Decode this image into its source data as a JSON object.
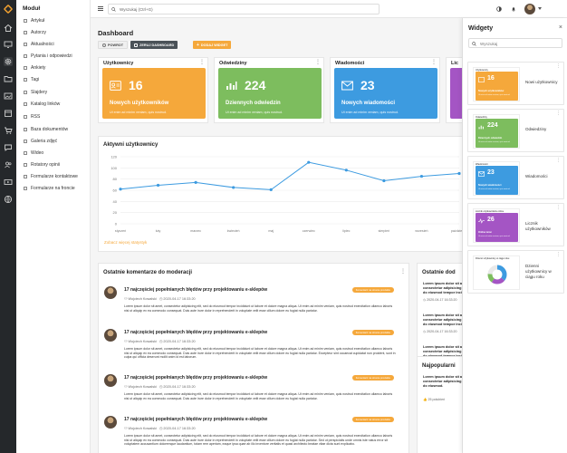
{
  "sidebar": {
    "title": "Moduł",
    "items": [
      {
        "label": "Artykuł"
      },
      {
        "label": "Autorzy"
      },
      {
        "label": "Aktualności"
      },
      {
        "label": "Pytania i odpowiedzi"
      },
      {
        "label": "Ankiety"
      },
      {
        "label": "Tagi"
      },
      {
        "label": "Slajdery"
      },
      {
        "label": "Katalog linków"
      },
      {
        "label": "RSS"
      },
      {
        "label": "Baza dokumentów"
      },
      {
        "label": "Galeria zdjęć"
      },
      {
        "label": "Wideo"
      },
      {
        "label": "Rotatory opinii"
      },
      {
        "label": "Formularze kontaktowe"
      },
      {
        "label": "Formularze na froncie"
      }
    ]
  },
  "topbar": {
    "search_placeholder": "Wyszukaj (Ctrl+G)"
  },
  "page": {
    "title": "Dashboard",
    "buttons": {
      "back": "POWROT",
      "reset": "ZERUJ DASHBOARD",
      "add_widget": "DODAJ WIDGET"
    }
  },
  "stats": [
    {
      "header": "Użytkownicy",
      "value": "16",
      "label": "Nowych użytkowników",
      "desc": "Ut enim ad minim veniam, quis nostrud.",
      "color": "#f5a83b"
    },
    {
      "header": "Odwiedziny",
      "value": "224",
      "label": "Dziennych odwiedzin",
      "desc": "Ut enim ad minim veniam, quis nostrud.",
      "color": "#7dbd5e"
    },
    {
      "header": "Wiadomości",
      "value": "23",
      "label": "Nowych wiadomości",
      "desc": "Ut enim ad minim veniam, quis nostrud.",
      "color": "#3d9be0"
    },
    {
      "header": "Lic",
      "color": "#a455c4"
    }
  ],
  "chart": {
    "title": "Aktywni użytkownicy",
    "more_link": "Zobacz więcej statystyk"
  },
  "chart_data": {
    "type": "line",
    "title": "Aktywni użytkownicy",
    "categories": [
      "styczeń",
      "luty",
      "marzec",
      "kwiecień",
      "maj",
      "czerwiec",
      "lipiec",
      "sierpień",
      "wrzesień",
      "październik"
    ],
    "series": [
      {
        "values": [
          62,
          69,
          74,
          65,
          61,
          110,
          96,
          77,
          85,
          90
        ]
      }
    ],
    "y_ticks": [
      "0",
      "20",
      "40",
      "60",
      "80",
      "100",
      "120"
    ],
    "ylim": [
      0,
      120
    ],
    "grid": true,
    "color": "#3d9be0"
  },
  "comments_card": {
    "title": "Ostatnie komentarze do moderacji",
    "items": [
      {
        "title": "17 najczęściej popełnianych błędów przy projektowaniu e-sklepów",
        "tag": "Komentarz na stronie produktu",
        "author": "Wojciech Kowalski",
        "date": "2020-04-17 16:33:20",
        "body": "Lorem ipsum dolor sit amet, consectetur adipisicing elit, sed do eiusmod tempor incididunt ut labore et dolore magna aliqua. Ut enim ad minim veniam, quis nostrud exercitation ullamco laboris nisi ut aliquip ex ea commodo consequat. Duis aute irure dolor in reprehenderit in voluptate velit esse cillum dolore eu fugiat nulla pariatur."
      },
      {
        "title": "17 najczęściej popełnianych błędów przy projektowaniu e-sklepów",
        "tag": "Komentarz na stronie produktu",
        "author": "Wojciech Kowalski",
        "date": "2020-04-17 16:33:20",
        "body": "Lorem ipsum dolor sit amet, consectetur adipisicing elit, sed do eiusmod tempor incididunt ut labore et dolore magna aliqua. Ut enim ad minim veniam, quis nostrud exercitation ullamco laboris nisi ut aliquip ex ea commodo consequat. Duis aute irure dolor in reprehenderit in voluptate velit esse cillum dolore eu fugiat nulla pariatur. Excepteur sint occaecat cupidatat non proident, sunt in culpa qui officia deserunt mollit anim id est laborum."
      },
      {
        "title": "17 najczęściej popełnianych błędów przy projektowaniu e-sklepów",
        "tag": "Komentarz na stronie produktu",
        "author": "Wojciech Kowalski",
        "date": "2020-04-17 16:33:20",
        "body": "Lorem ipsum dolor sit amet, consectetur adipisicing elit, sed do eiusmod tempor incididunt ut labore et dolore magna aliqua. Ut enim ad minim veniam, quis nostrud exercitation ullamco laboris nisi ut aliquip ex ea commodo consequat. Duis aute irure dolor in reprehenderit in voluptate velit esse cillum dolore eu fugiat nulla pariatur."
      },
      {
        "title": "17 najczęściej popełnianych błędów przy projektowaniu e-sklepów",
        "tag": "Komentarz na stronie produktu",
        "author": "Wojciech Kowalski",
        "date": "2020-04-17 16:33:20",
        "body": "Lorem ipsum dolor sit amet, consectetur adipisicing elit, sed do eiusmod tempor incididunt ut labore et dolore magna aliqua. Ut enim ad minim veniam, quis nostrud exercitation ullamco laboris nisi ut aliquip ex ea commodo consequat. Duis aute irure dolor in reprehenderit in voluptate velit esse cillum dolore eu fugiat nulla pariatur. Sed ut perspiciatis unde omnis iste natus error sit voluptatem accusantium doloremque laudantium, totam rem aperiam, eaque ipsa quae ab illo inventore veritatis et quasi architecto beatae vitae dicta sunt explicabo."
      }
    ]
  },
  "right_card": {
    "title": "Ostatnie dod",
    "items": [
      {
        "text": "Lorem ipsum dolor sit amet, consectetur adipisicing elit, sed do eiusmod tempor incididunt ut labore et dolore.",
        "date": "2020-04-17 16:33:20"
      },
      {
        "text": "Lorem ipsum dolor sit amet, consectetur adipisicing elit, sed do eiusmod tempor incididunt ut labore et dolore.",
        "date": "2020-04-17 16:33:20"
      },
      {
        "text": "Lorem ipsum dolor sit amet, consectetur adipisicing elit, sed do eiusmod tempor incididunt ut labore et dolore.",
        "date": "2020-04-17 16:33:20"
      }
    ],
    "more_link": "Zobacz wszystkie"
  },
  "popular_card": {
    "title": "Najpopularni",
    "item": "Lorem ipsum dolor sit amet, consectetur adipisicing elit, sed do eiusmod.",
    "likes": "25 polubień"
  },
  "widgets_panel": {
    "title": "Widgety",
    "search_placeholder": "Wyszukaj",
    "items": [
      {
        "header": "Użytkownicy",
        "value": "16",
        "sub": "Nowych użytkowników",
        "desc": "Ut enim ad minim veniam, quis nostrud.",
        "color": "#f5a83b",
        "label": "Nowi użytkownicy"
      },
      {
        "header": "Odwiedziny",
        "value": "224",
        "sub": "Dziennych odwiedzin",
        "desc": "Ut enim ad minim veniam, quis nostrud.",
        "color": "#7dbd5e",
        "label": "Odwiedziny"
      },
      {
        "header": "Wiadomości",
        "value": "23",
        "sub": "Nowych wiadomości",
        "desc": "Ut enim ad minim veniam, quis nostrud.",
        "color": "#3d9be0",
        "label": "Wiadomości"
      },
      {
        "header": "Licznik użytkowników online",
        "value": "26",
        "sub": "Online teraz",
        "desc": "Ut enim ad minim veniam, quis nostrud.",
        "color": "#a455c4",
        "label": "Licznik użytkowników"
      },
      {
        "header": "Dzienni użytkownicy w ciągu roku",
        "label": "Dzienni użytkownicy w ciągu roku"
      }
    ]
  }
}
